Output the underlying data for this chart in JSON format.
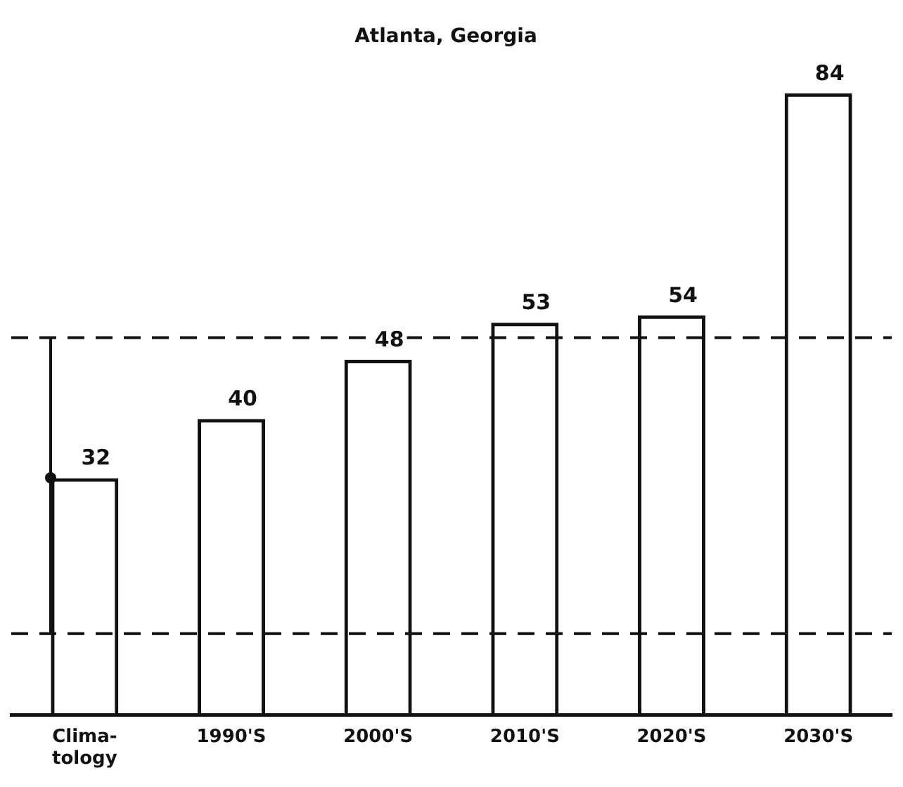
{
  "chart_data": {
    "type": "bar",
    "title": "Atlanta, Georgia",
    "categories": [
      "Clima- tology",
      "1990'S",
      "2000'S",
      "2010'S",
      "2020'S",
      "2030'S"
    ],
    "values": [
      32,
      40,
      48,
      53,
      54,
      84
    ],
    "color": "#111111",
    "tick_labels": "x",
    "grid": false,
    "legend": false,
    "data_labels": true,
    "ref_lines": [
      {
        "axis": "y",
        "value": 51,
        "line_style": "dashed"
      },
      {
        "axis": "y",
        "value": 11,
        "line_style": "dashed"
      }
    ]
  }
}
